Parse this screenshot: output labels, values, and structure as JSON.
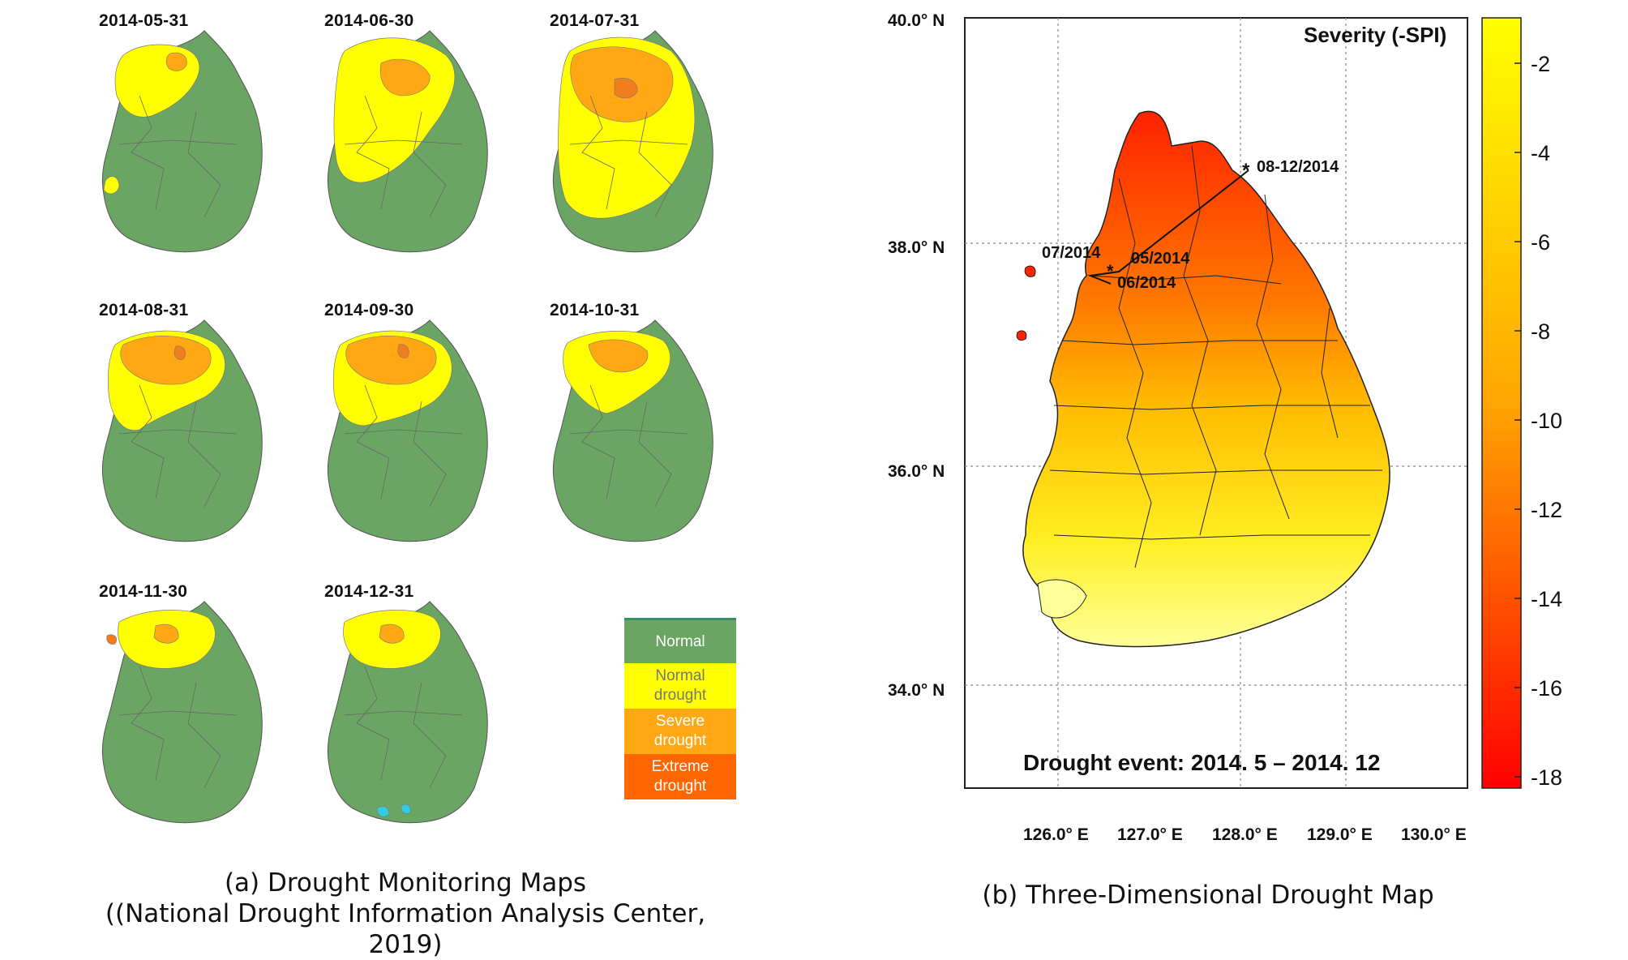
{
  "panel_a": {
    "dates": [
      "2014-05-31",
      "2014-06-30",
      "2014-07-31",
      "2014-08-31",
      "2014-09-30",
      "2014-10-31",
      "2014-11-30",
      "2014-12-31"
    ],
    "legend": [
      {
        "label": "Normal",
        "color": "#6aa564"
      },
      {
        "label": "Normal\ndrought",
        "color": "#ffff00"
      },
      {
        "label": "Severe\ndrought",
        "color": "#ffa814"
      },
      {
        "label": "Extreme\ndrought",
        "color": "#ff6600"
      }
    ],
    "caption_line1": "(a) Drought Monitoring Maps",
    "caption_line2": "((National Drought Information Analysis Center, 2019)"
  },
  "panel_b": {
    "title": "Severity  (-SPI)",
    "lat_labels": [
      "40.0° N",
      "38.0° N",
      "36.0° N",
      "34.0° N"
    ],
    "lon_labels": [
      "126.0° E",
      "127.0° E",
      "128.0° E",
      "129.0° E",
      "130.0° E"
    ],
    "colorbar_ticks": [
      "-2",
      "-4",
      "-6",
      "-8",
      "-10",
      "-12",
      "-14",
      "-16",
      "-18"
    ],
    "colorbar_colors": [
      "#ffff00",
      "#ff0000"
    ],
    "event_labels": [
      "08-12/2014",
      "07/2014",
      "05/2014",
      "06/2014"
    ],
    "event_note": "Drought event: 2014. 5 – 2014. 12",
    "caption": "(b) Three-Dimensional Drought Map"
  }
}
